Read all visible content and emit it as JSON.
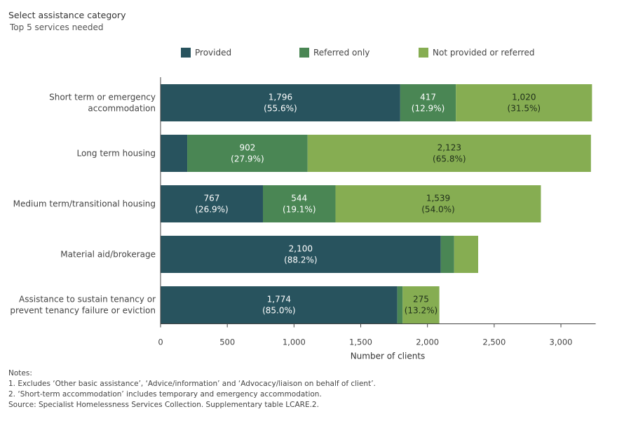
{
  "header": {
    "title": "Select assistance category",
    "subtitle": "Top 5 services needed"
  },
  "colors": {
    "provided": "#28535e",
    "referred": "#4a8654",
    "not_provided": "#86ad52",
    "axis": "#444444",
    "gridline": "#e6e6e6"
  },
  "legend": [
    {
      "label": "Provided",
      "color": "#28535e"
    },
    {
      "label": "Referred only",
      "color": "#4a8654"
    },
    {
      "label": "Not provided or referred",
      "color": "#86ad52"
    }
  ],
  "chart_data": {
    "type": "bar",
    "orientation": "horizontal",
    "stacked": true,
    "categories": [
      [
        "Short term or emergency",
        "accommodation"
      ],
      [
        "Long term housing"
      ],
      [
        "Medium term/transitional housing"
      ],
      [
        "Material aid/brokerage"
      ],
      [
        "Assistance to sustain tenancy or",
        "prevent tenancy failure or eviction"
      ]
    ],
    "series": [
      {
        "name": "Provided",
        "values": [
          1796,
          200,
          767,
          2100,
          1774
        ],
        "labels": [
          "1,796\n(55.6%)",
          "",
          "767\n(26.9%)",
          "2,100\n(88.2%)",
          "1,774\n(85.0%)"
        ]
      },
      {
        "name": "Referred only",
        "values": [
          417,
          902,
          544,
          100,
          40
        ],
        "labels": [
          "417\n(12.9%)",
          "902\n(27.9%)",
          "544\n(19.1%)",
          "",
          ""
        ]
      },
      {
        "name": "Not provided or referred",
        "values": [
          1020,
          2123,
          1539,
          180,
          275
        ],
        "labels": [
          "1,020\n(31.5%)",
          "2,123\n(65.8%)",
          "1,539\n(54.0%)",
          "",
          "275\n(13.2%)"
        ]
      }
    ],
    "xlabel": "Number of clients",
    "xlim": [
      0,
      3250
    ],
    "xticks": [
      0,
      500,
      1000,
      1500,
      2000,
      2500,
      3000
    ],
    "xtick_labels": [
      "0",
      "500",
      "1,000",
      "1,500",
      "2,000",
      "2,500",
      "3,000"
    ],
    "grid": false
  },
  "notes": [
    "Notes:",
    "1. Excludes ‘Other basic assistance’, ‘Advice/information’ and ‘Advocacy/liaison on behalf of client’.",
    "2. ‘Short-term accommodation’ includes temporary and emergency accommodation.",
    "Source: Specialist Homelessness Services Collection. Supplementary table LCARE.2."
  ]
}
